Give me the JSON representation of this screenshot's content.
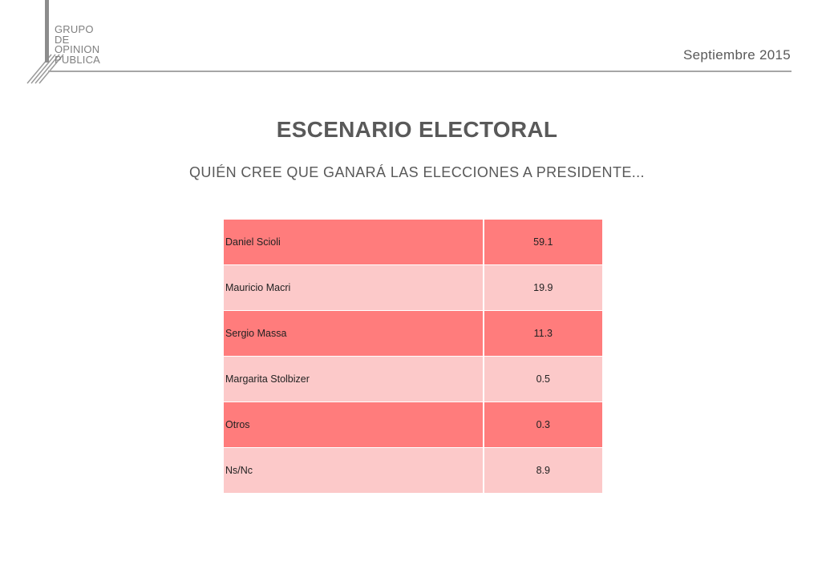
{
  "logo": {
    "lines": [
      "GRUPO",
      "DE",
      "OPINION",
      "PUBLICA"
    ]
  },
  "header": {
    "date": "Septiembre 2015"
  },
  "title": "ESCENARIO ELECTORAL",
  "subtitle": "QUIÉN CREE QUE GANARÁ LAS ELECCIONES A PRESIDENTE...",
  "table": {
    "rows": [
      {
        "name": "Daniel Scioli",
        "value": "59.1"
      },
      {
        "name": "Mauricio Macri",
        "value": "19.9"
      },
      {
        "name": "Sergio Massa",
        "value": "11.3"
      },
      {
        "name": "Margarita Stolbizer",
        "value": "0.5"
      },
      {
        "name": "Otros",
        "value": "0.3"
      },
      {
        "name": "Ns/Nc",
        "value": "8.9"
      }
    ]
  },
  "colors": {
    "row_dark": "#ff7c7c",
    "row_light": "#fcc9c9",
    "text_gray": "#595959"
  }
}
